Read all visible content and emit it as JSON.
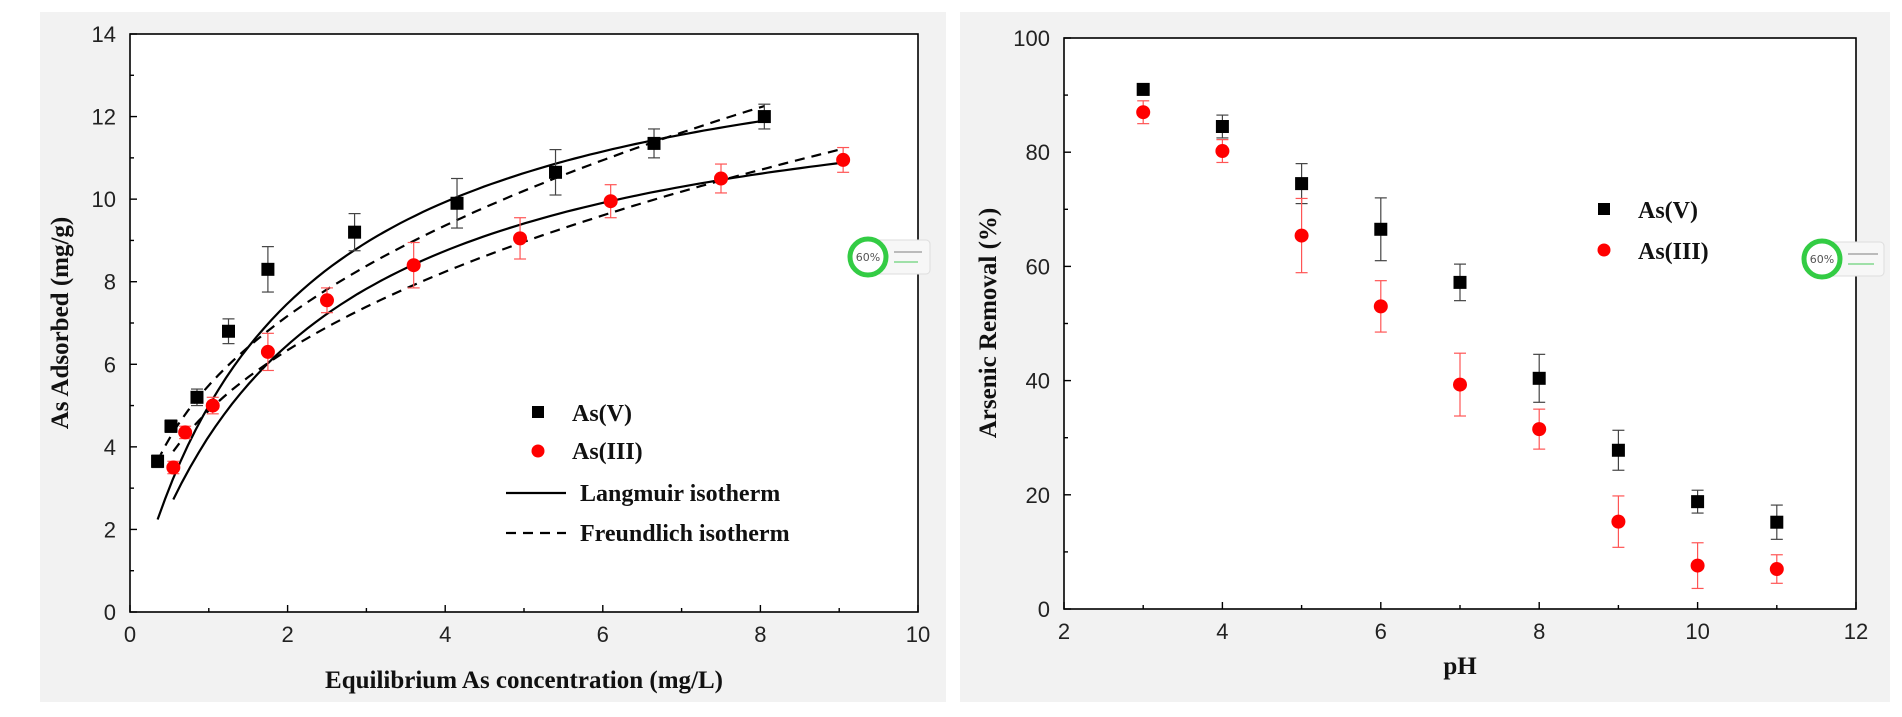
{
  "chart_data": [
    {
      "type": "scatter",
      "xlabel": "Equilibrium As concentration (mg/L)",
      "ylabel": "As Adsorbed (mg/g)",
      "xlim": [
        0,
        10
      ],
      "ylim": [
        0,
        14
      ],
      "xticks": [
        "0",
        "2",
        "4",
        "6",
        "8",
        "10"
      ],
      "yticks": [
        "0",
        "2",
        "4",
        "6",
        "8",
        "10",
        "12",
        "14"
      ],
      "grid": false,
      "legend_position": "lower-right",
      "series": [
        {
          "name": "As(V)",
          "marker": "square",
          "color": "#000000",
          "x": [
            0.35,
            0.52,
            0.85,
            1.25,
            1.75,
            2.85,
            4.15,
            5.4,
            6.65,
            8.05
          ],
          "y": [
            3.65,
            4.5,
            5.2,
            6.8,
            8.3,
            9.2,
            9.9,
            10.65,
            11.35,
            12.0
          ],
          "err": [
            0.15,
            0.15,
            0.2,
            0.3,
            0.55,
            0.45,
            0.6,
            0.55,
            0.35,
            0.3
          ]
        },
        {
          "name": "As(III)",
          "marker": "circle",
          "color": "#ff0000",
          "x": [
            0.55,
            0.7,
            1.05,
            1.75,
            2.5,
            3.6,
            4.95,
            6.1,
            7.5,
            9.05
          ],
          "y": [
            3.5,
            4.35,
            5.0,
            6.3,
            7.55,
            8.4,
            9.05,
            9.95,
            10.5,
            10.95
          ],
          "err": [
            0.15,
            0.15,
            0.2,
            0.45,
            0.3,
            0.55,
            0.5,
            0.4,
            0.35,
            0.3
          ]
        },
        {
          "name": "Langmuir isotherm",
          "style": "solid",
          "color": "#000000",
          "curves": [
            {
              "qmax": 14.8,
              "K": 0.51,
              "x_from": 0.35,
              "x_to": 8.05
            },
            {
              "qmax": 13.5,
              "K": 0.46,
              "x_from": 0.55,
              "x_to": 9.05
            }
          ]
        },
        {
          "name": "Freundlich isotherm",
          "style": "dashed",
          "color": "#000000",
          "curves": [
            {
              "Kf": 5.49,
              "n": 0.385,
              "x_from": 0.35,
              "x_to": 8.05
            },
            {
              "Kf": 4.88,
              "n": 0.378,
              "x_from": 0.55,
              "x_to": 9.05
            }
          ]
        }
      ]
    },
    {
      "type": "scatter",
      "xlabel": "pH",
      "ylabel": "Arsenic Removal (%)",
      "xlim": [
        2,
        12
      ],
      "ylim": [
        0,
        100
      ],
      "xticks": [
        "2",
        "4",
        "6",
        "8",
        "10",
        "12"
      ],
      "yticks": [
        "0",
        "20",
        "40",
        "60",
        "80",
        "100"
      ],
      "grid": false,
      "legend_position": "upper-right",
      "series": [
        {
          "name": "As(V)",
          "marker": "square",
          "color": "#000000",
          "x": [
            3,
            4,
            5,
            6,
            7,
            8,
            9,
            10,
            11
          ],
          "y": [
            91,
            84.5,
            74.5,
            66.5,
            57.2,
            40.4,
            27.8,
            18.8,
            15.2
          ],
          "err": [
            1.0,
            2.0,
            3.5,
            5.5,
            3.2,
            4.2,
            3.5,
            2.0,
            3.0
          ]
        },
        {
          "name": "As(III)",
          "marker": "circle",
          "color": "#ff0000",
          "x": [
            3,
            4,
            5,
            6,
            7,
            8,
            9,
            10,
            11
          ],
          "y": [
            87,
            80.2,
            65.4,
            53,
            39.3,
            31.5,
            15.3,
            7.6,
            7.0
          ],
          "err": [
            2.0,
            2.0,
            6.5,
            4.5,
            5.5,
            3.5,
            4.5,
            4.0,
            2.5
          ]
        }
      ]
    }
  ],
  "widgets": [
    {
      "icon": "progress-ring-icon",
      "percent_label": "60%",
      "color": "#33cc44"
    },
    {
      "icon": "progress-ring-icon",
      "percent_label": "60%",
      "color": "#33cc44"
    }
  ]
}
